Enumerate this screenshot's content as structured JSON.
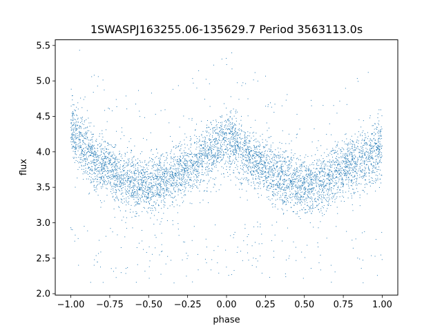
{
  "chart_data": {
    "type": "scatter",
    "title": "1SWASPJ163255.06-135629.7 Period 3563113.0s",
    "xlabel": "phase",
    "ylabel": "flux",
    "xlim": [
      -1.1,
      1.1
    ],
    "ylim": [
      1.98,
      5.58
    ],
    "x_ticks": [
      -1.0,
      -0.75,
      -0.5,
      -0.25,
      0.0,
      0.25,
      0.5,
      0.75,
      1.0
    ],
    "x_tick_labels": [
      "−1.00",
      "−0.75",
      "−0.50",
      "−0.25",
      "0.00",
      "0.25",
      "0.50",
      "0.75",
      "1.00"
    ],
    "y_ticks": [
      2.0,
      2.5,
      3.0,
      3.5,
      4.0,
      4.5,
      5.0,
      5.5
    ],
    "y_tick_labels": [
      "2.0",
      "2.5",
      "3.0",
      "3.5",
      "4.0",
      "4.5",
      "5.0",
      "5.5"
    ],
    "grid": false,
    "marker_color": "#1f77b4",
    "series": [
      {
        "points_description_free": true,
        "phase_profile": [
          [
            -1.0,
            4.35,
            0.2
          ],
          [
            -0.95,
            4.2,
            0.22
          ],
          [
            -0.9,
            3.98,
            0.22
          ],
          [
            -0.85,
            3.85,
            0.2
          ],
          [
            -0.8,
            3.82,
            0.2
          ],
          [
            -0.75,
            3.78,
            0.2
          ],
          [
            -0.7,
            3.68,
            0.22
          ],
          [
            -0.65,
            3.62,
            0.22
          ],
          [
            -0.6,
            3.6,
            0.22
          ],
          [
            -0.55,
            3.55,
            0.2
          ],
          [
            -0.5,
            3.52,
            0.2
          ],
          [
            -0.45,
            3.55,
            0.2
          ],
          [
            -0.4,
            3.58,
            0.2
          ],
          [
            -0.35,
            3.65,
            0.2
          ],
          [
            -0.3,
            3.72,
            0.2
          ],
          [
            -0.25,
            3.78,
            0.2
          ],
          [
            -0.2,
            3.82,
            0.2
          ],
          [
            -0.15,
            3.9,
            0.22
          ],
          [
            -0.1,
            3.98,
            0.22
          ],
          [
            -0.05,
            4.05,
            0.22
          ],
          [
            0.0,
            4.2,
            0.22
          ],
          [
            0.05,
            4.15,
            0.22
          ],
          [
            0.1,
            3.98,
            0.22
          ],
          [
            0.15,
            3.92,
            0.2
          ],
          [
            0.2,
            3.85,
            0.2
          ],
          [
            0.25,
            3.78,
            0.2
          ],
          [
            0.3,
            3.68,
            0.22
          ],
          [
            0.35,
            3.62,
            0.22
          ],
          [
            0.4,
            3.6,
            0.22
          ],
          [
            0.45,
            3.55,
            0.2
          ],
          [
            0.5,
            3.52,
            0.2
          ],
          [
            0.55,
            3.52,
            0.2
          ],
          [
            0.6,
            3.55,
            0.2
          ],
          [
            0.65,
            3.6,
            0.2
          ],
          [
            0.7,
            3.72,
            0.2
          ],
          [
            0.75,
            3.78,
            0.2
          ],
          [
            0.8,
            3.82,
            0.2
          ],
          [
            0.85,
            3.88,
            0.22
          ],
          [
            0.9,
            3.92,
            0.22
          ],
          [
            0.95,
            4.0,
            0.22
          ],
          [
            1.0,
            4.05,
            0.22
          ]
        ]
      }
    ]
  }
}
